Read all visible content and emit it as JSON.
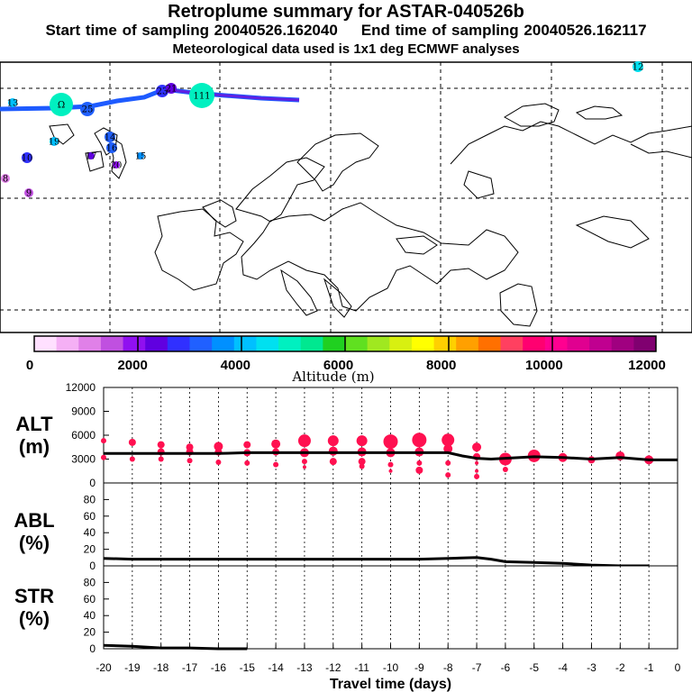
{
  "title": "Retroplume summary for ASTAR-040526b",
  "subtitle_start": "Start time of sampling 20040526.162040",
  "subtitle_end": "End time of sampling 20040526.162117",
  "subtitle_met": "Meteorological data used is 1x1 deg ECMWF analyses",
  "colors": {
    "scale": [
      "#ffe0ff",
      "#f5b0f5",
      "#e080e8",
      "#c050e0",
      "#9010f0",
      "#6000e0",
      "#3030ff",
      "#2060ff",
      "#0090ff",
      "#00c0ff",
      "#00e0f0",
      "#00f0c0",
      "#00e890",
      "#20d020",
      "#60e020",
      "#a0e820",
      "#d8f010",
      "#ffff00",
      "#ffd000",
      "#ffa000",
      "#ff7000",
      "#ff4060",
      "#ff0070",
      "#ff0090",
      "#e00090",
      "#c00090",
      "#a00080",
      "#800070"
    ],
    "marker": "#ff1050",
    "line": "#000000"
  },
  "colorbar": {
    "ticks": [
      "0",
      "2000",
      "4000",
      "6000",
      "8000",
      "10000",
      "12000"
    ],
    "label": "Altitude (m)"
  },
  "map_markers": [
    {
      "label": "12",
      "color": "#00e0f0"
    },
    {
      "label": "13",
      "color": "#00c0ff"
    },
    {
      "label": "Ω",
      "color": "#00f0c0"
    },
    {
      "label": "25",
      "color": "#2060ff"
    },
    {
      "label": "23",
      "color": "#3030ff"
    },
    {
      "label": "21",
      "color": "#6000e0"
    },
    {
      "label": "111",
      "color": "#00f0c0"
    },
    {
      "label": "19",
      "color": "#00c0ff"
    },
    {
      "label": "14",
      "color": "#2060ff"
    },
    {
      "label": "10",
      "color": "#3030ff"
    },
    {
      "label": "16",
      "color": "#2060ff"
    },
    {
      "label": "17",
      "color": "#6000e0"
    },
    {
      "label": "20",
      "color": "#9010f0"
    },
    {
      "label": "15",
      "color": "#0090ff"
    },
    {
      "label": "9",
      "color": "#c050e0"
    },
    {
      "label": "8",
      "color": "#e080e8"
    }
  ],
  "chart_data": [
    {
      "type": "scatter",
      "panel": "ALT",
      "ylabel_top": "ALT",
      "ylabel_bottom": "(m)",
      "ylim": [
        0,
        12000
      ],
      "yticks": [
        0,
        3000,
        6000,
        9000,
        12000
      ],
      "xlim": [
        -20,
        0
      ],
      "line": {
        "x": [
          -20,
          -19,
          -18,
          -17,
          -16,
          -15,
          -14,
          -13,
          -12,
          -11,
          -10,
          -9,
          -8,
          -7.5,
          -7,
          -6.5,
          -6,
          -5,
          -4,
          -3,
          -2,
          -1,
          0
        ],
        "y": [
          3700,
          3700,
          3700,
          3700,
          3700,
          3800,
          3800,
          3800,
          3800,
          3800,
          3800,
          3800,
          3800,
          3400,
          3100,
          3000,
          3100,
          3300,
          3200,
          3000,
          3200,
          2900,
          2900
        ]
      },
      "points": [
        {
          "x": -20,
          "y": 5300,
          "size": 3
        },
        {
          "x": -20,
          "y": 3200,
          "size": 3
        },
        {
          "x": -19,
          "y": 5100,
          "size": 4
        },
        {
          "x": -19,
          "y": 3000,
          "size": 3
        },
        {
          "x": -18,
          "y": 4800,
          "size": 4
        },
        {
          "x": -18,
          "y": 3900,
          "size": 4
        },
        {
          "x": -18,
          "y": 3000,
          "size": 3
        },
        {
          "x": -17,
          "y": 4500,
          "size": 4
        },
        {
          "x": -17,
          "y": 3900,
          "size": 4
        },
        {
          "x": -17,
          "y": 2800,
          "size": 3
        },
        {
          "x": -16,
          "y": 4600,
          "size": 5
        },
        {
          "x": -16,
          "y": 3900,
          "size": 4
        },
        {
          "x": -16,
          "y": 2600,
          "size": 3
        },
        {
          "x": -15,
          "y": 4800,
          "size": 4
        },
        {
          "x": -15,
          "y": 3800,
          "size": 4
        },
        {
          "x": -15,
          "y": 2500,
          "size": 3
        },
        {
          "x": -14,
          "y": 4900,
          "size": 5
        },
        {
          "x": -14,
          "y": 3900,
          "size": 4
        },
        {
          "x": -14,
          "y": 2300,
          "size": 3
        },
        {
          "x": -13,
          "y": 5300,
          "size": 7
        },
        {
          "x": -13,
          "y": 3800,
          "size": 5
        },
        {
          "x": -13,
          "y": 2700,
          "size": 3
        },
        {
          "x": -13,
          "y": 2000,
          "size": 2
        },
        {
          "x": -12,
          "y": 5300,
          "size": 6
        },
        {
          "x": -12,
          "y": 4000,
          "size": 5
        },
        {
          "x": -12,
          "y": 2700,
          "size": 4
        },
        {
          "x": -11,
          "y": 5300,
          "size": 6
        },
        {
          "x": -11,
          "y": 3900,
          "size": 5
        },
        {
          "x": -11,
          "y": 2700,
          "size": 4
        },
        {
          "x": -11,
          "y": 2100,
          "size": 3
        },
        {
          "x": -10,
          "y": 5200,
          "size": 8
        },
        {
          "x": -10,
          "y": 3800,
          "size": 5
        },
        {
          "x": -10,
          "y": 2300,
          "size": 3
        },
        {
          "x": -10,
          "y": 1500,
          "size": 2
        },
        {
          "x": -9,
          "y": 5400,
          "size": 8
        },
        {
          "x": -9,
          "y": 3900,
          "size": 5
        },
        {
          "x": -9,
          "y": 2500,
          "size": 3
        },
        {
          "x": -9,
          "y": 1600,
          "size": 4
        },
        {
          "x": -8,
          "y": 5400,
          "size": 7
        },
        {
          "x": -8,
          "y": 4300,
          "size": 5
        },
        {
          "x": -8,
          "y": 2500,
          "size": 3
        },
        {
          "x": -8,
          "y": 1000,
          "size": 3
        },
        {
          "x": -7,
          "y": 4500,
          "size": 5
        },
        {
          "x": -7,
          "y": 3300,
          "size": 4
        },
        {
          "x": -7,
          "y": 2500,
          "size": 2
        },
        {
          "x": -7,
          "y": 1500,
          "size": 2
        },
        {
          "x": -7,
          "y": 800,
          "size": 3
        },
        {
          "x": -6,
          "y": 3000,
          "size": 7
        },
        {
          "x": -6,
          "y": 1700,
          "size": 3
        },
        {
          "x": -5,
          "y": 3400,
          "size": 7
        },
        {
          "x": -4,
          "y": 3200,
          "size": 5
        },
        {
          "x": -3,
          "y": 2900,
          "size": 4
        },
        {
          "x": -2,
          "y": 3400,
          "size": 5
        },
        {
          "x": -1,
          "y": 2900,
          "size": 5
        }
      ]
    },
    {
      "type": "line",
      "panel": "ABL",
      "ylabel_top": "ABL",
      "ylabel_bottom": "(%)",
      "ylim": [
        0,
        100
      ],
      "yticks": [
        0,
        20,
        40,
        60,
        80
      ],
      "xlim": [
        -20,
        0
      ],
      "x": [
        -20,
        -19,
        -18,
        -17,
        -16,
        -15,
        -14,
        -13,
        -12,
        -11,
        -10,
        -9,
        -8,
        -7,
        -6.5,
        -6,
        -5,
        -4,
        -3,
        -2,
        -1
      ],
      "y": [
        9,
        8,
        8,
        8,
        8,
        8,
        8,
        8,
        8,
        8,
        8,
        8,
        9,
        10,
        8,
        5,
        4,
        3,
        1,
        0,
        0
      ]
    },
    {
      "type": "line",
      "panel": "STR",
      "ylabel_top": "STR",
      "ylabel_bottom": "(%)",
      "ylim": [
        0,
        100
      ],
      "yticks": [
        0,
        20,
        40,
        60,
        80
      ],
      "xlim": [
        -20,
        0
      ],
      "x": [
        -20,
        -19,
        -18,
        -17,
        -16,
        -15
      ],
      "y": [
        4,
        3,
        1,
        1,
        0,
        0
      ],
      "xlabel": "Travel time (days)",
      "xticks": [
        -20,
        -19,
        -18,
        -17,
        -16,
        -15,
        -14,
        -13,
        -12,
        -11,
        -10,
        -9,
        -8,
        -7,
        -6,
        -5,
        -4,
        -3,
        -2,
        -1,
        0
      ]
    }
  ]
}
